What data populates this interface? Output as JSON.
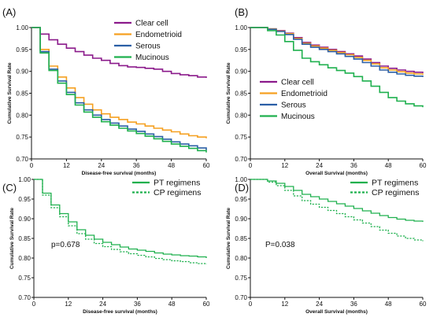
{
  "chart_data": [
    {
      "type": "line",
      "panel_label": "(A)",
      "xlabel": "Disease-free survival (months)",
      "ylabel": "Cumulative Survival Rate",
      "xlim": [
        0,
        60
      ],
      "ylim": [
        0.7,
        1.0
      ],
      "xticks": [
        "0",
        "12",
        "24",
        "36",
        "48",
        "60"
      ],
      "yticks": [
        "0.70",
        "0.75",
        "0.80",
        "0.85",
        "0.90",
        "0.95",
        "1.00"
      ],
      "legend_position": "top-right",
      "annotation": "",
      "series": [
        {
          "name": "Clear cell",
          "color": "#8B1A8B",
          "dash": false,
          "x": [
            0,
            3,
            6,
            9,
            12,
            15,
            18,
            21,
            24,
            27,
            30,
            33,
            36,
            39,
            42,
            45,
            48,
            51,
            54,
            57,
            60
          ],
          "y": [
            1.0,
            0.985,
            0.972,
            0.962,
            0.953,
            0.945,
            0.937,
            0.93,
            0.925,
            0.918,
            0.913,
            0.91,
            0.909,
            0.907,
            0.905,
            0.9,
            0.895,
            0.892,
            0.89,
            0.887,
            0.885
          ]
        },
        {
          "name": "Endometrioid",
          "color": "#F5A020",
          "dash": false,
          "x": [
            0,
            3,
            6,
            9,
            12,
            15,
            18,
            21,
            24,
            27,
            30,
            33,
            36,
            39,
            42,
            45,
            48,
            51,
            54,
            57,
            60
          ],
          "y": [
            1.0,
            0.95,
            0.912,
            0.887,
            0.862,
            0.84,
            0.825,
            0.812,
            0.803,
            0.795,
            0.79,
            0.784,
            0.78,
            0.775,
            0.77,
            0.766,
            0.762,
            0.757,
            0.753,
            0.75,
            0.747
          ]
        },
        {
          "name": "Serous",
          "color": "#2B5FA6",
          "dash": false,
          "x": [
            0,
            3,
            6,
            9,
            12,
            15,
            18,
            21,
            24,
            27,
            30,
            33,
            36,
            39,
            42,
            45,
            48,
            51,
            54,
            57,
            60
          ],
          "y": [
            1.0,
            0.945,
            0.905,
            0.878,
            0.852,
            0.828,
            0.812,
            0.8,
            0.79,
            0.782,
            0.775,
            0.768,
            0.763,
            0.757,
            0.751,
            0.745,
            0.739,
            0.734,
            0.73,
            0.725,
            0.72
          ]
        },
        {
          "name": "Mucinous",
          "color": "#1FB04E",
          "dash": false,
          "x": [
            0,
            3,
            6,
            9,
            12,
            15,
            18,
            21,
            24,
            27,
            30,
            33,
            36,
            39,
            42,
            45,
            48,
            51,
            54,
            57,
            60
          ],
          "y": [
            1.0,
            0.942,
            0.902,
            0.873,
            0.847,
            0.823,
            0.807,
            0.795,
            0.785,
            0.777,
            0.77,
            0.764,
            0.758,
            0.752,
            0.746,
            0.74,
            0.734,
            0.729,
            0.724,
            0.719,
            0.715
          ]
        }
      ]
    },
    {
      "type": "line",
      "panel_label": "(B)",
      "xlabel": "Overall Survival (months)",
      "ylabel": "Cumulative Survival Rate",
      "xlim": [
        0,
        60
      ],
      "ylim": [
        0.7,
        1.0
      ],
      "xticks": [
        "0",
        "12",
        "24",
        "36",
        "48",
        "60"
      ],
      "yticks": [
        "0.70",
        "0.75",
        "0.80",
        "0.85",
        "0.90",
        "0.95",
        "1.00"
      ],
      "legend_position": "lower-left",
      "annotation": "",
      "series": [
        {
          "name": "Clear cell",
          "color": "#8B1A8B",
          "dash": false,
          "x": [
            0,
            6,
            9,
            12,
            15,
            18,
            21,
            24,
            27,
            30,
            33,
            36,
            39,
            42,
            45,
            48,
            51,
            54,
            57,
            60
          ],
          "y": [
            1.0,
            0.997,
            0.993,
            0.987,
            0.977,
            0.966,
            0.96,
            0.955,
            0.95,
            0.945,
            0.94,
            0.935,
            0.928,
            0.92,
            0.912,
            0.907,
            0.903,
            0.9,
            0.898,
            0.896
          ]
        },
        {
          "name": "Endometrioid",
          "color": "#F5A020",
          "dash": false,
          "x": [
            0,
            6,
            9,
            12,
            15,
            18,
            21,
            24,
            27,
            30,
            33,
            36,
            39,
            42,
            45,
            48,
            51,
            54,
            57,
            60
          ],
          "y": [
            1.0,
            0.997,
            0.992,
            0.986,
            0.975,
            0.964,
            0.958,
            0.953,
            0.948,
            0.943,
            0.938,
            0.932,
            0.925,
            0.917,
            0.908,
            0.903,
            0.899,
            0.896,
            0.894,
            0.892
          ]
        },
        {
          "name": "Serous",
          "color": "#2B5FA6",
          "dash": false,
          "x": [
            0,
            6,
            9,
            12,
            15,
            18,
            21,
            24,
            27,
            30,
            33,
            36,
            39,
            42,
            45,
            48,
            51,
            54,
            57,
            60
          ],
          "y": [
            1.0,
            0.996,
            0.991,
            0.984,
            0.973,
            0.962,
            0.955,
            0.95,
            0.945,
            0.94,
            0.934,
            0.928,
            0.92,
            0.912,
            0.903,
            0.898,
            0.894,
            0.891,
            0.889,
            0.887
          ]
        },
        {
          "name": "Mucinous",
          "color": "#1FB04E",
          "dash": false,
          "x": [
            0,
            6,
            9,
            12,
            15,
            18,
            21,
            24,
            27,
            30,
            33,
            36,
            39,
            42,
            45,
            48,
            51,
            54,
            57,
            60
          ],
          "y": [
            1.0,
            0.993,
            0.983,
            0.968,
            0.948,
            0.93,
            0.922,
            0.915,
            0.908,
            0.902,
            0.896,
            0.888,
            0.878,
            0.866,
            0.852,
            0.84,
            0.832,
            0.826,
            0.821,
            0.818
          ]
        }
      ]
    },
    {
      "type": "line",
      "panel_label": "(C)",
      "xlabel": "Disease-free survival (months)",
      "ylabel": "Cumulative Survival Rate",
      "xlim": [
        0,
        60
      ],
      "ylim": [
        0.7,
        1.0
      ],
      "xticks": [
        "0",
        "12",
        "24",
        "36",
        "48",
        "60"
      ],
      "yticks": [
        "0.70",
        "0.75",
        "0.80",
        "0.85",
        "0.90",
        "0.95",
        "1.00"
      ],
      "legend_position": "top-right",
      "annotation": "p=0.678",
      "series": [
        {
          "name": "PT regimens",
          "color": "#1FB04E",
          "dash": false,
          "x": [
            0,
            3,
            6,
            9,
            12,
            15,
            18,
            21,
            24,
            27,
            30,
            33,
            36,
            39,
            42,
            45,
            48,
            51,
            54,
            57,
            60
          ],
          "y": [
            1.0,
            0.965,
            0.935,
            0.913,
            0.892,
            0.872,
            0.858,
            0.848,
            0.84,
            0.834,
            0.828,
            0.823,
            0.82,
            0.817,
            0.813,
            0.81,
            0.808,
            0.806,
            0.805,
            0.803,
            0.8
          ]
        },
        {
          "name": "CP regimens",
          "color": "#1FB04E",
          "dash": true,
          "x": [
            0,
            3,
            6,
            9,
            12,
            15,
            18,
            21,
            24,
            27,
            30,
            33,
            36,
            39,
            42,
            45,
            48,
            51,
            54,
            57,
            60
          ],
          "y": [
            1.0,
            0.96,
            0.928,
            0.905,
            0.882,
            0.862,
            0.848,
            0.837,
            0.829,
            0.822,
            0.816,
            0.811,
            0.807,
            0.803,
            0.799,
            0.796,
            0.793,
            0.791,
            0.788,
            0.786,
            0.784
          ]
        }
      ]
    },
    {
      "type": "line",
      "panel_label": "(D)",
      "xlabel": "Overall Survival (months)",
      "ylabel": "Cumulative Survival Rate",
      "xlim": [
        0,
        60
      ],
      "ylim": [
        0.7,
        1.0
      ],
      "xticks": [
        "0",
        "12",
        "24",
        "36",
        "48",
        "60"
      ],
      "yticks": [
        "0.70",
        "0.75",
        "0.80",
        "0.85",
        "0.90",
        "0.95",
        "1.00"
      ],
      "legend_position": "top-right",
      "annotation": "P=0.038",
      "series": [
        {
          "name": "PT regimens",
          "color": "#1FB04E",
          "dash": false,
          "x": [
            0,
            6,
            9,
            12,
            15,
            18,
            21,
            24,
            27,
            30,
            33,
            36,
            39,
            42,
            45,
            48,
            51,
            54,
            57,
            60
          ],
          "y": [
            1.0,
            0.996,
            0.99,
            0.982,
            0.972,
            0.962,
            0.956,
            0.95,
            0.944,
            0.938,
            0.932,
            0.926,
            0.92,
            0.914,
            0.908,
            0.903,
            0.899,
            0.896,
            0.894,
            0.892
          ]
        },
        {
          "name": "CP regimens",
          "color": "#1FB04E",
          "dash": true,
          "x": [
            0,
            6,
            9,
            12,
            15,
            18,
            21,
            24,
            27,
            30,
            33,
            36,
            39,
            42,
            45,
            48,
            51,
            54,
            57,
            60
          ],
          "y": [
            1.0,
            0.993,
            0.984,
            0.972,
            0.958,
            0.946,
            0.937,
            0.929,
            0.921,
            0.913,
            0.905,
            0.897,
            0.889,
            0.88,
            0.871,
            0.863,
            0.856,
            0.85,
            0.846,
            0.843
          ]
        }
      ]
    }
  ]
}
